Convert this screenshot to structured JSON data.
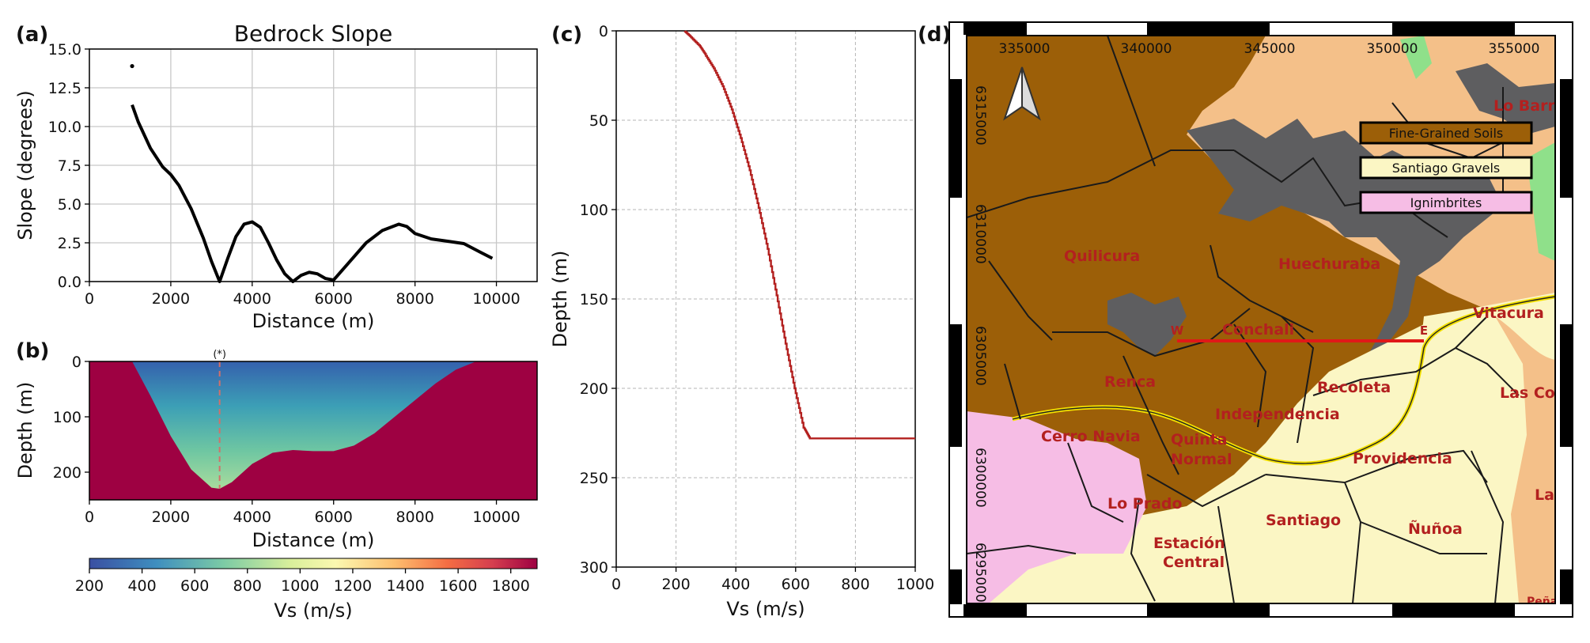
{
  "colors": {
    "fine_soils": "#9c5f08",
    "santiago_gravels": "#fbf6c4",
    "ignimbrites": "#f6bde5",
    "bedrock": "#5e5e60",
    "sand": "#f4c089",
    "green": "#8fe08a",
    "vs_line": "#b3201f",
    "section_line": "#e01818",
    "vs_max": "#9e0142"
  },
  "chart_data": [
    {
      "panel": "(a)",
      "type": "line",
      "title": "Bedrock Slope",
      "xlabel": "Distance (m)",
      "ylabel": "Slope (degrees)",
      "xlim": [
        0,
        11000
      ],
      "ylim": [
        0,
        15
      ],
      "xticks": [
        0,
        2000,
        4000,
        6000,
        8000,
        10000
      ],
      "yticks": [
        0.0,
        2.5,
        5.0,
        7.5,
        10.0,
        12.5,
        15.0
      ],
      "grid": true,
      "outlier": [
        1050,
        13.9
      ],
      "series": [
        {
          "name": "slope",
          "x": [
            1050,
            1200,
            1500,
            1800,
            2000,
            2200,
            2500,
            2800,
            3000,
            3200,
            3400,
            3600,
            3800,
            4000,
            4200,
            4400,
            4600,
            4800,
            5000,
            5200,
            5400,
            5600,
            5800,
            6000,
            6400,
            6800,
            7200,
            7600,
            7800,
            8000,
            8400,
            8800,
            9200,
            9600,
            9900
          ],
          "y": [
            11.4,
            10.3,
            8.6,
            7.4,
            6.9,
            6.2,
            4.7,
            2.8,
            1.3,
            0.0,
            1.5,
            2.9,
            3.7,
            3.85,
            3.5,
            2.5,
            1.4,
            0.5,
            0.0,
            0.4,
            0.6,
            0.5,
            0.2,
            0.1,
            1.3,
            2.5,
            3.3,
            3.7,
            3.55,
            3.1,
            2.75,
            2.6,
            2.45,
            1.9,
            1.5
          ]
        }
      ]
    },
    {
      "panel": "(b)",
      "type": "heatmap",
      "xlabel": "Distance (m)",
      "ylabel": "Depth (m)",
      "xlim": [
        0,
        11000
      ],
      "ylim": [
        250,
        0
      ],
      "xticks": [
        0,
        2000,
        4000,
        6000,
        8000,
        10000
      ],
      "yticks": [
        0,
        100,
        200
      ],
      "marker_label": "(*)",
      "marker_x": 3200,
      "bedrock_profile": {
        "x": [
          1050,
          1500,
          2000,
          2500,
          3000,
          3200,
          3500,
          4000,
          4500,
          5000,
          5500,
          6000,
          6500,
          7000,
          7500,
          8000,
          8500,
          9000,
          9500,
          9700
        ],
        "depth": [
          0,
          62,
          135,
          195,
          228,
          230,
          218,
          185,
          165,
          160,
          162,
          162,
          152,
          130,
          100,
          70,
          40,
          15,
          0,
          0
        ]
      },
      "colorbar": {
        "label": "Vs (m/s)",
        "range": [
          200,
          1900
        ],
        "ticks": [
          200,
          400,
          600,
          800,
          1000,
          1200,
          1400,
          1600,
          1800
        ],
        "colormap": "Spectral_r"
      }
    },
    {
      "panel": "(c)",
      "type": "line",
      "xlabel": "Vs (m/s)",
      "ylabel": "Depth (m)",
      "xlim": [
        0,
        1000
      ],
      "ylim": [
        300,
        0
      ],
      "xticks": [
        0,
        200,
        400,
        600,
        800,
        1000
      ],
      "yticks": [
        0,
        50,
        100,
        150,
        200,
        250,
        300
      ],
      "grid": "dashed",
      "series": [
        {
          "name": "Vs profile",
          "x": [
            230,
            250,
            280,
            300,
            330,
            360,
            390,
            420,
            450,
            480,
            510,
            540,
            570,
            600,
            630,
            650,
            1000
          ],
          "y": [
            0,
            3,
            8,
            13,
            21,
            31,
            44,
            60,
            78,
            99,
            122,
            148,
            175,
            200,
            222,
            228,
            228
          ]
        }
      ]
    }
  ],
  "map": {
    "panel_label": "(d)",
    "eastings": [
      "335000",
      "340000",
      "345000",
      "350000",
      "355000"
    ],
    "northings": [
      "6315000",
      "6310000",
      "6305000",
      "6300000",
      "6295000"
    ],
    "legend": [
      {
        "label": "Fine-Grained Soils",
        "color": "#9c5f08"
      },
      {
        "label": "Santiago Gravels",
        "color": "#fbf6c4"
      },
      {
        "label": "Ignimbrites",
        "color": "#f6bde5"
      }
    ],
    "municipalities": [
      "Lo Barne",
      "Quilicura",
      "Huechuraba",
      "Vitacura",
      "Conchali",
      "Renca",
      "Recoleta",
      "Las Co",
      "Independencia",
      "Cerro Navia",
      "Quinta",
      "Normal",
      "Providencia",
      "Lo Prado",
      "Santiago",
      "Ñuñoa",
      "La",
      "Estación",
      "Central",
      "Peña"
    ],
    "section_start": "W",
    "section_end": "E"
  }
}
